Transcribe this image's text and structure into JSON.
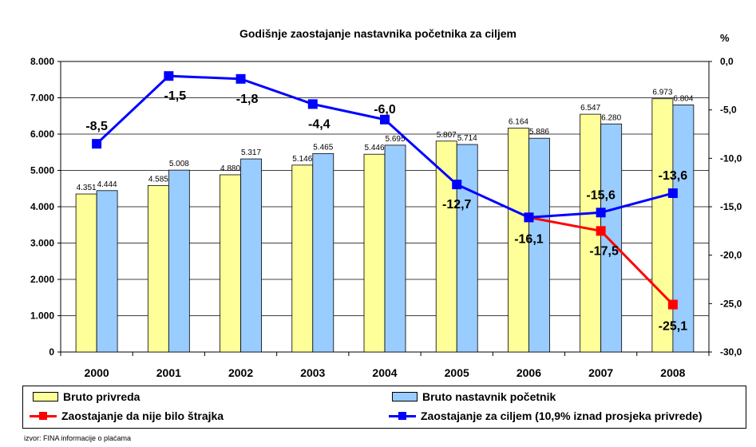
{
  "title": "Godišnje zaostajanje nastavnika početnika za ciljem",
  "right_axis_unit": "%",
  "source": "izvor: FINA informacije o plaćama",
  "colors": {
    "bruto_privreda": "#ffff99",
    "bruto_nastavnik": "#99ccff",
    "red_line": "#ff0000",
    "blue_line": "#0000ff",
    "plot_bg": "#ffffff",
    "grid": "#000000"
  },
  "legend": [
    {
      "label": "Bruto privreda",
      "type": "box",
      "color": "#ffff99"
    },
    {
      "label": "Bruto nastavnik početnik",
      "type": "box",
      "color": "#99ccff"
    },
    {
      "label": "Zaostajanje da nije bilo štrajka",
      "type": "line",
      "color": "#ff0000"
    },
    {
      "label": "Zaostajanje za ciljem (10,9% iznad prosjeka privrede)",
      "type": "line",
      "color": "#0000ff"
    }
  ],
  "chart_data": {
    "type": "bar",
    "title": "Godišnje zaostajanje nastavnika početnika za ciljem",
    "categories": [
      "2000",
      "2001",
      "2002",
      "2003",
      "2004",
      "2005",
      "2006",
      "2007",
      "2008"
    ],
    "left_axis": {
      "ylim": [
        0,
        8000
      ],
      "ticks": [
        0,
        1000,
        2000,
        3000,
        4000,
        5000,
        6000,
        7000,
        8000
      ],
      "tick_labels": [
        "0",
        "1.000",
        "2.000",
        "3.000",
        "4.000",
        "5.000",
        "6.000",
        "7.000",
        "8.000"
      ]
    },
    "right_axis": {
      "ylim": [
        -30,
        0
      ],
      "ticks": [
        0,
        -5,
        -10,
        -15,
        -20,
        -25,
        -30
      ],
      "tick_labels": [
        "0,0",
        "-5,0",
        "-10,0",
        "-15,0",
        "-20,0",
        "-25,0",
        "-30,0"
      ],
      "unit": "%"
    },
    "grid": true,
    "series": [
      {
        "name": "Bruto privreda",
        "kind": "bar",
        "axis": "left",
        "color": "#ffff99",
        "values": [
          4351,
          4585,
          4880,
          5146,
          5446,
          5807,
          6164,
          6547,
          6973
        ],
        "labels": [
          "4.351",
          "4.585",
          "4.880",
          "5.146",
          "5.446",
          "5.807",
          "6.164",
          "6.547",
          "6.973"
        ]
      },
      {
        "name": "Bruto nastavnik početnik",
        "kind": "bar",
        "axis": "left",
        "color": "#99ccff",
        "values": [
          4444,
          5008,
          5317,
          5465,
          5695,
          5714,
          5886,
          6280,
          6804
        ],
        "labels": [
          "4.444",
          "5.008",
          "5.317",
          "5.465",
          "5.695",
          "5.714",
          "5.886",
          "6.280",
          "6.804"
        ]
      },
      {
        "name": "Zaostajanje da nije bilo štrajka",
        "kind": "line",
        "axis": "right",
        "color": "#ff0000",
        "values": [
          null,
          null,
          null,
          null,
          null,
          null,
          -16.1,
          -17.5,
          -25.1
        ],
        "labels": [
          null,
          null,
          null,
          null,
          null,
          null,
          null,
          "-17,5",
          "-25,1"
        ]
      },
      {
        "name": "Zaostajanje za ciljem (10,9% iznad prosjeka privrede)",
        "kind": "line",
        "axis": "right",
        "color": "#0000ff",
        "values": [
          -8.5,
          -1.5,
          -1.8,
          -4.4,
          -6.0,
          -12.7,
          -16.1,
          -15.6,
          -13.6
        ],
        "labels": [
          "-8,5",
          "-1,5",
          "-1,8",
          "-4,4",
          "-6,0",
          "-12,7",
          "-16,1",
          "-15,6",
          "-13,6"
        ]
      }
    ]
  }
}
